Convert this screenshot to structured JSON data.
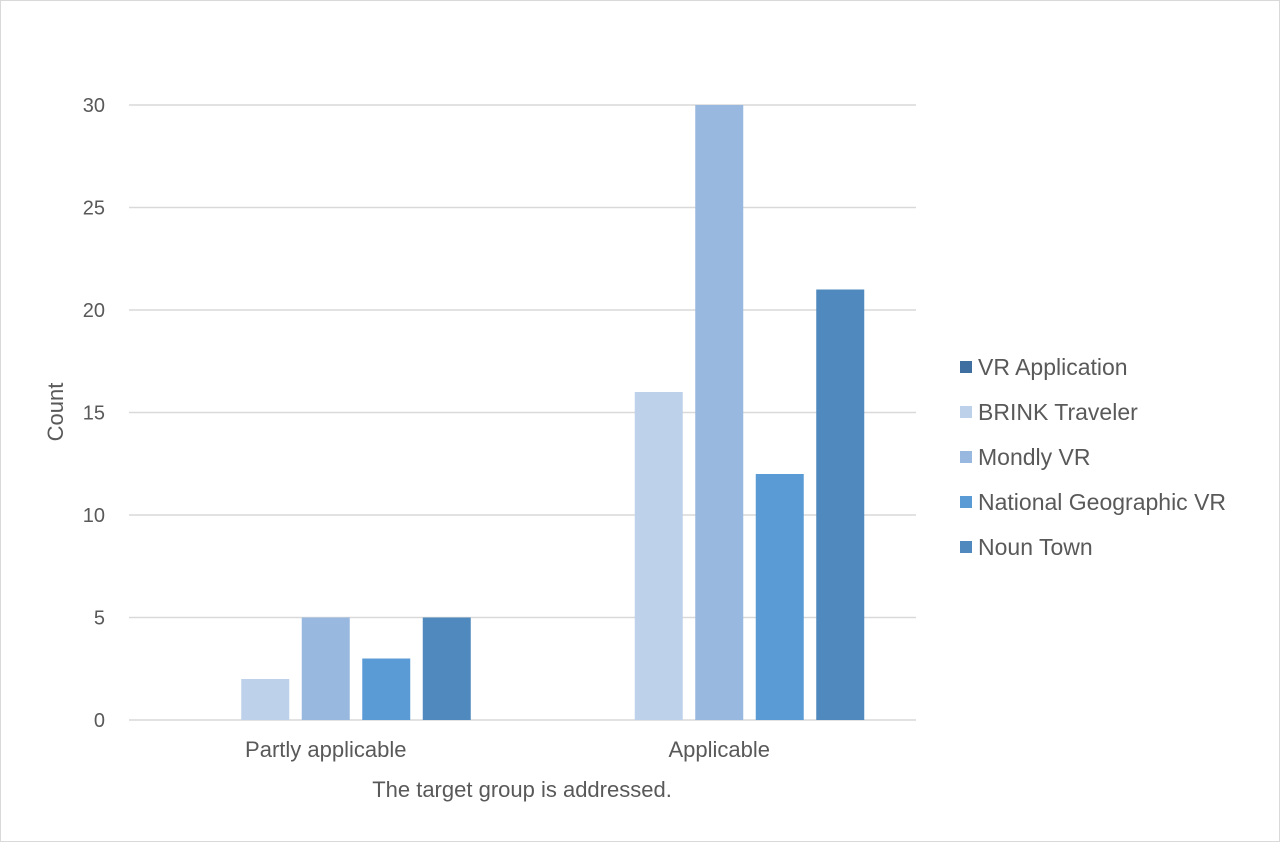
{
  "chart_data": {
    "type": "bar",
    "title": "",
    "xlabel": "The target group is addressed.",
    "ylabel": "Count",
    "ylim": [
      0,
      30
    ],
    "yticks": [
      0,
      5,
      10,
      15,
      20,
      25,
      30
    ],
    "grid": true,
    "legend_position": "right",
    "categories": [
      "Partly applicable",
      "Applicable"
    ],
    "series": [
      {
        "name": "VR Application",
        "color": "#3e6fa0",
        "values": [
          0,
          0
        ]
      },
      {
        "name": "BRINK Traveler",
        "color": "#bdd1ea",
        "values": [
          2,
          16
        ]
      },
      {
        "name": "Mondly VR",
        "color": "#98b8df",
        "values": [
          5,
          30
        ]
      },
      {
        "name": "National Geographic VR",
        "color": "#5b9bd5",
        "values": [
          3,
          12
        ]
      },
      {
        "name": "Noun Town",
        "color": "#4f89bd",
        "values": [
          5,
          21
        ]
      }
    ]
  }
}
